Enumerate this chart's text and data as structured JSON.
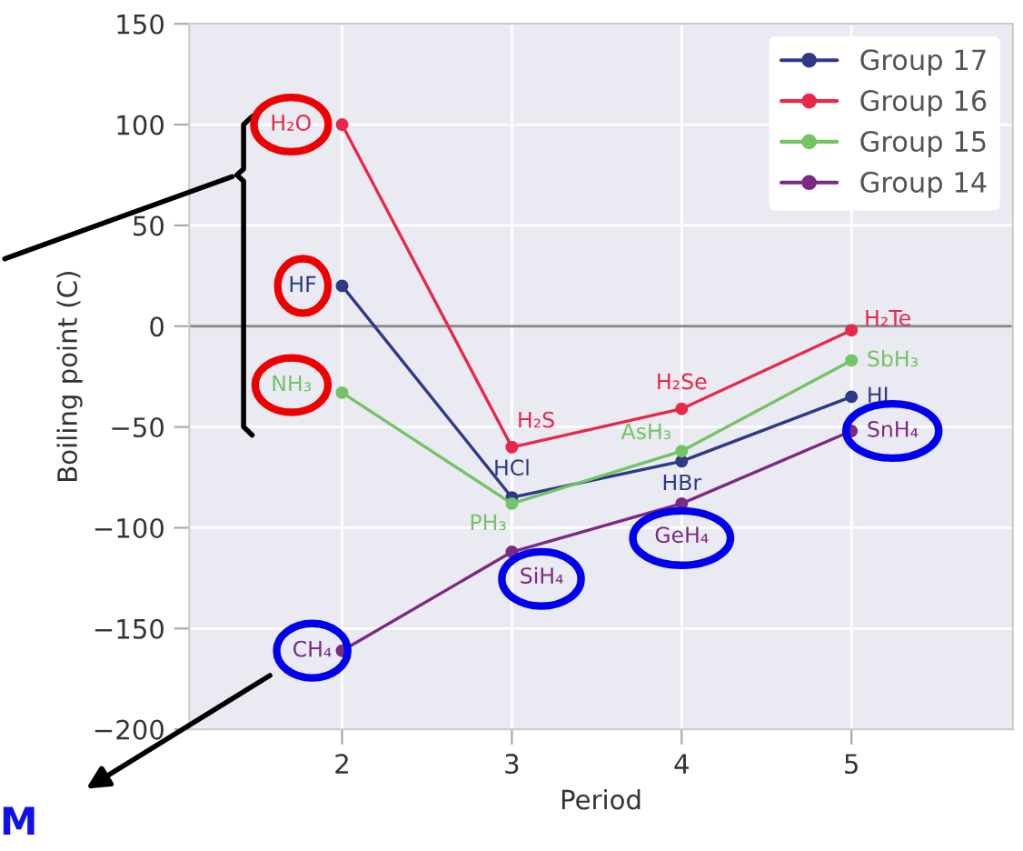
{
  "chart_data": {
    "type": "line",
    "xlabel": "Period",
    "ylabel": "Boiling point (C)",
    "x": [
      2,
      3,
      4,
      5
    ],
    "series": [
      {
        "name": "Group 17",
        "color": "#2e3a87",
        "values": [
          20,
          -85,
          -67,
          -35
        ]
      },
      {
        "name": "Group 16",
        "color": "#e8274b",
        "values": [
          100,
          -60,
          -41,
          -2
        ]
      },
      {
        "name": "Group 15",
        "color": "#74c365",
        "values": [
          -33,
          -88,
          -62,
          -17
        ]
      },
      {
        "name": "Group 14",
        "color": "#7b2a83",
        "values": [
          -161,
          -112,
          -88,
          -52
        ]
      }
    ],
    "xlim": [
      1.1,
      5.95
    ],
    "xticks": [
      2,
      3,
      4,
      5
    ],
    "ylim": [
      -200,
      150
    ],
    "yticks": [
      {
        "value": -200,
        "label": "−200"
      },
      {
        "value": -150,
        "label": "−150"
      },
      {
        "value": -100,
        "label": "−100"
      },
      {
        "value": -50,
        "label": "−50"
      },
      0,
      50,
      100,
      150
    ],
    "grid": true,
    "legend": "top right",
    "marker": "circle",
    "line_style": "solid",
    "ref_lines": [
      {
        "axis": "y",
        "value": 0,
        "color": "#8a8a8a"
      }
    ],
    "annotations": [
      {
        "text": "H₂O",
        "x": 2,
        "y": 100
      },
      {
        "text": "HF",
        "x": 2,
        "y": 20
      },
      {
        "text": "NH₃",
        "x": 2,
        "y": -33
      },
      {
        "text": "CH₄",
        "x": 2,
        "y": -161
      },
      {
        "text": "H₂S",
        "x": 3,
        "y": -60
      },
      {
        "text": "HCl",
        "x": 3,
        "y": -85
      },
      {
        "text": "PH₃",
        "x": 3,
        "y": -88
      },
      {
        "text": "SiH₄",
        "x": 3,
        "y": -112
      },
      {
        "text": "H₂Se",
        "x": 4,
        "y": -41
      },
      {
        "text": "AsH₃",
        "x": 4,
        "y": -62
      },
      {
        "text": "HBr",
        "x": 4,
        "y": -67
      },
      {
        "text": "GeH₄",
        "x": 4,
        "y": -88
      },
      {
        "text": "H₂Te",
        "x": 5,
        "y": -2
      },
      {
        "text": "SbH₃",
        "x": 5,
        "y": -17
      },
      {
        "text": "HI",
        "x": 5,
        "y": -35
      },
      {
        "text": "SnH₄",
        "x": 5,
        "y": -52
      },
      "M"
    ]
  }
}
